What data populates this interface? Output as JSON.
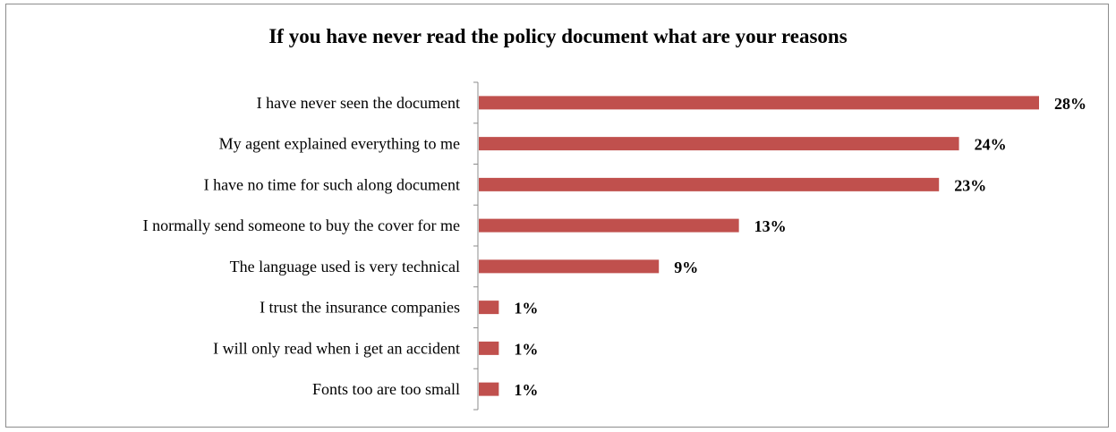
{
  "chart_data": {
    "type": "bar",
    "orientation": "horizontal",
    "title": "If you have never read the policy document what are your reasons",
    "categories": [
      "I have never seen the document",
      "My agent explained everything to me",
      "I have no time for such along document",
      "I normally send someone to buy the cover for me",
      "The language used is very technical",
      "I trust the insurance companies",
      "I will only read when i get an accident",
      "Fonts too  are too small"
    ],
    "values": [
      28,
      24,
      23,
      13,
      9,
      1,
      1,
      1
    ],
    "value_labels": [
      "28%",
      "24%",
      "23%",
      "13%",
      "9%",
      "1%",
      "1%",
      "1%"
    ],
    "value_suffix": "%",
    "bar_color": "#c0504d",
    "xlabel": "",
    "ylabel": "",
    "grid": false,
    "legend": "none"
  }
}
